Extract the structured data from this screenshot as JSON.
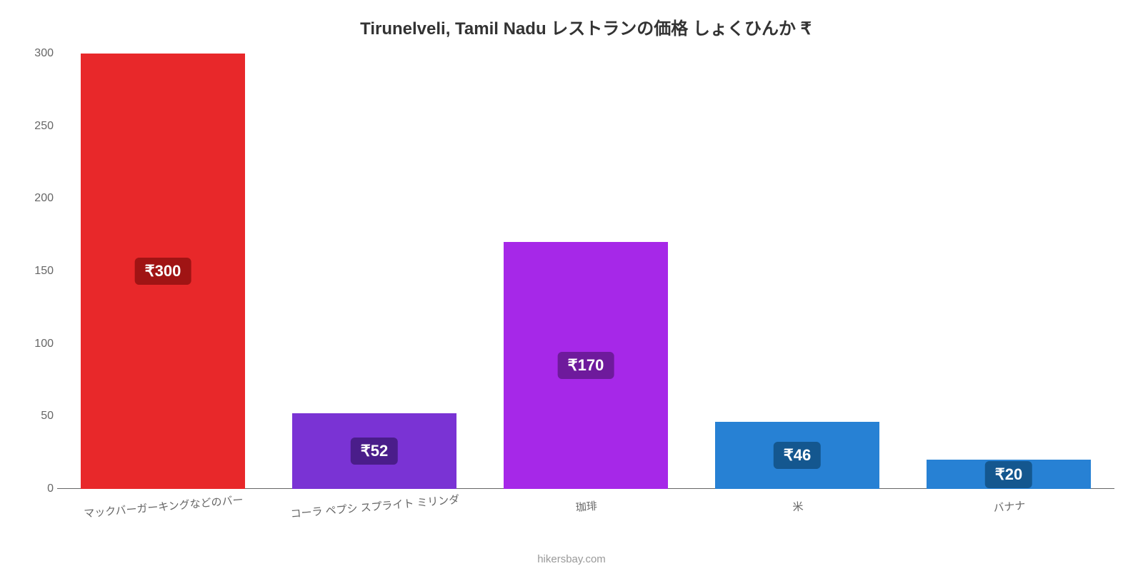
{
  "chart": {
    "type": "bar",
    "title": "Tirunelveli, Tamil Nadu レストランの価格 しょくひんか ₹",
    "title_fontsize": 24,
    "title_color": "#333333",
    "background_color": "#ffffff",
    "attribution": "hikersbay.com",
    "attribution_color": "#999999",
    "ylim_min": 0,
    "ylim_max": 300,
    "yticks": [
      0,
      50,
      100,
      150,
      200,
      250,
      300
    ],
    "ytick_color": "#666666",
    "ytick_fontsize": 16,
    "baseline_color": "#666666",
    "xlabel_color": "#666666",
    "xlabel_fontsize": 15,
    "bar_width_ratio": 0.78,
    "value_label_fontsize": 22,
    "value_label_text_color": "#ffffff",
    "categories": [
      "マックバーガーキングなどのバー",
      "コーラ ペプシ スプライト ミリンダ",
      "珈琲",
      "米",
      "バナナ"
    ],
    "values": [
      300,
      52,
      170,
      46,
      20
    ],
    "value_labels": [
      "₹300",
      "₹52",
      "₹170",
      "₹46",
      "₹20"
    ],
    "bar_colors": [
      "#e8282a",
      "#7a33d4",
      "#a628e8",
      "#2781d4",
      "#2781d4"
    ],
    "value_label_bg_colors": [
      "#a01414",
      "#4a1d8a",
      "#6e1a9c",
      "#14578f",
      "#14578f"
    ]
  }
}
